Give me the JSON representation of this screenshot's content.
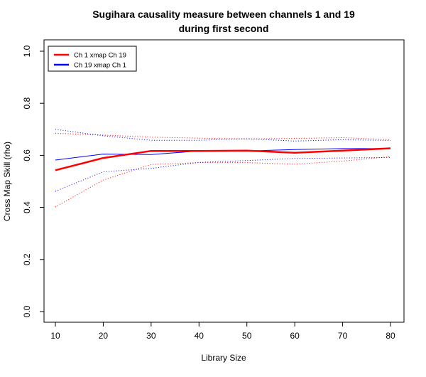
{
  "chart_data": {
    "type": "line",
    "title_line1": "Sugihara causality measure between channels  1 and 19",
    "title_line2": "during first second",
    "xlabel": "Library Size",
    "ylabel": "Cross Map Skill (rho)",
    "xlim": [
      10,
      80
    ],
    "ylim": [
      0,
      1
    ],
    "x": [
      10,
      20,
      30,
      40,
      50,
      60,
      70,
      80
    ],
    "x_ticks": [
      "10",
      "20",
      "30",
      "40",
      "50",
      "60",
      "70",
      "80"
    ],
    "y_ticks": [
      "0.0",
      "0.2",
      "0.4",
      "0.6",
      "0.8",
      "1.0"
    ],
    "y_tick_values": [
      0,
      0.2,
      0.4,
      0.6,
      0.8,
      1.0
    ],
    "grid": false,
    "legend_position": "top-left",
    "series": [
      {
        "name": "Ch 1 xmap Ch 19",
        "color": "#ff0000",
        "style": "solid-thick",
        "values": [
          0.543,
          0.59,
          0.617,
          0.617,
          0.618,
          0.61,
          0.618,
          0.627
        ],
        "upper": [
          0.685,
          0.678,
          0.67,
          0.666,
          0.663,
          0.665,
          0.668,
          0.66
        ],
        "lower": [
          0.402,
          0.505,
          0.565,
          0.572,
          0.572,
          0.566,
          0.578,
          0.595
        ]
      },
      {
        "name": "Ch 19  xmap Ch 1",
        "color": "#0000ff",
        "style": "solid-thin",
        "values": [
          0.582,
          0.605,
          0.603,
          0.617,
          0.617,
          0.622,
          0.626,
          0.626
        ],
        "upper": [
          0.7,
          0.675,
          0.658,
          0.658,
          0.664,
          0.655,
          0.66,
          0.657
        ],
        "lower": [
          0.462,
          0.537,
          0.55,
          0.573,
          0.58,
          0.588,
          0.59,
          0.592
        ]
      }
    ]
  }
}
